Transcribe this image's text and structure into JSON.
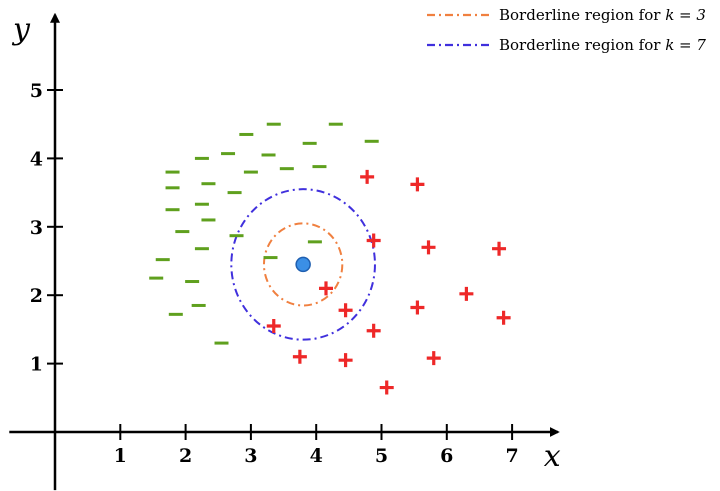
{
  "chart_data": {
    "type": "scatter",
    "xlabel": "x",
    "ylabel": "y",
    "xlim": [
      -0.7,
      7.7
    ],
    "ylim": [
      -0.85,
      6.1
    ],
    "x_ticks": [
      "1",
      "2",
      "3",
      "4",
      "5",
      "6",
      "7"
    ],
    "y_ticks": [
      "1",
      "2",
      "3",
      "4",
      "5"
    ],
    "grid": false,
    "legend_position": "top-right",
    "colors": {
      "negative": "#5fa01e",
      "positive": "#ee2828",
      "query": "#3b8fe6",
      "query_edge": "#1f5fb0",
      "k3": "#f08040",
      "k7": "#4030dd"
    },
    "query_point": {
      "x": 3.8,
      "y": 2.45
    },
    "negative_points": [
      [
        2.93,
        4.35
      ],
      [
        3.35,
        4.5
      ],
      [
        4.3,
        4.5
      ],
      [
        4.85,
        4.25
      ],
      [
        2.65,
        4.07
      ],
      [
        2.25,
        4.0
      ],
      [
        3.27,
        4.05
      ],
      [
        3.9,
        4.22
      ],
      [
        1.8,
        3.8
      ],
      [
        2.35,
        3.63
      ],
      [
        1.8,
        3.57
      ],
      [
        3.0,
        3.8
      ],
      [
        3.55,
        3.85
      ],
      [
        4.05,
        3.88
      ],
      [
        2.75,
        3.5
      ],
      [
        2.25,
        3.33
      ],
      [
        1.8,
        3.25
      ],
      [
        2.35,
        3.1
      ],
      [
        1.95,
        2.93
      ],
      [
        2.78,
        2.87
      ],
      [
        2.25,
        2.68
      ],
      [
        1.65,
        2.52
      ],
      [
        3.3,
        2.55
      ],
      [
        3.98,
        2.78
      ],
      [
        1.55,
        2.25
      ],
      [
        2.1,
        2.2
      ],
      [
        2.2,
        1.85
      ],
      [
        1.85,
        1.72
      ],
      [
        2.55,
        1.3
      ]
    ],
    "positive_points": [
      [
        4.78,
        3.73
      ],
      [
        5.55,
        3.62
      ],
      [
        4.88,
        2.8
      ],
      [
        5.72,
        2.7
      ],
      [
        6.8,
        2.68
      ],
      [
        4.15,
        2.1
      ],
      [
        6.3,
        2.02
      ],
      [
        5.55,
        1.82
      ],
      [
        4.45,
        1.78
      ],
      [
        6.87,
        1.67
      ],
      [
        3.35,
        1.55
      ],
      [
        4.88,
        1.48
      ],
      [
        3.75,
        1.1
      ],
      [
        4.45,
        1.05
      ],
      [
        5.8,
        1.08
      ],
      [
        5.08,
        0.65
      ]
    ],
    "circles": [
      {
        "label": "Borderline region for k = 3",
        "cx": 3.8,
        "cy": 2.45,
        "radius": 0.6,
        "color": "#f08040"
      },
      {
        "label": "Borderline region for k = 7",
        "cx": 3.8,
        "cy": 2.45,
        "radius": 1.1,
        "color": "#4030dd"
      }
    ],
    "legend": [
      {
        "label": "Borderline region for",
        "k_text": "k = 3",
        "color": "#f08040"
      },
      {
        "label": "Borderline region for",
        "k_text": "k = 7",
        "color": "#4030dd"
      }
    ]
  }
}
